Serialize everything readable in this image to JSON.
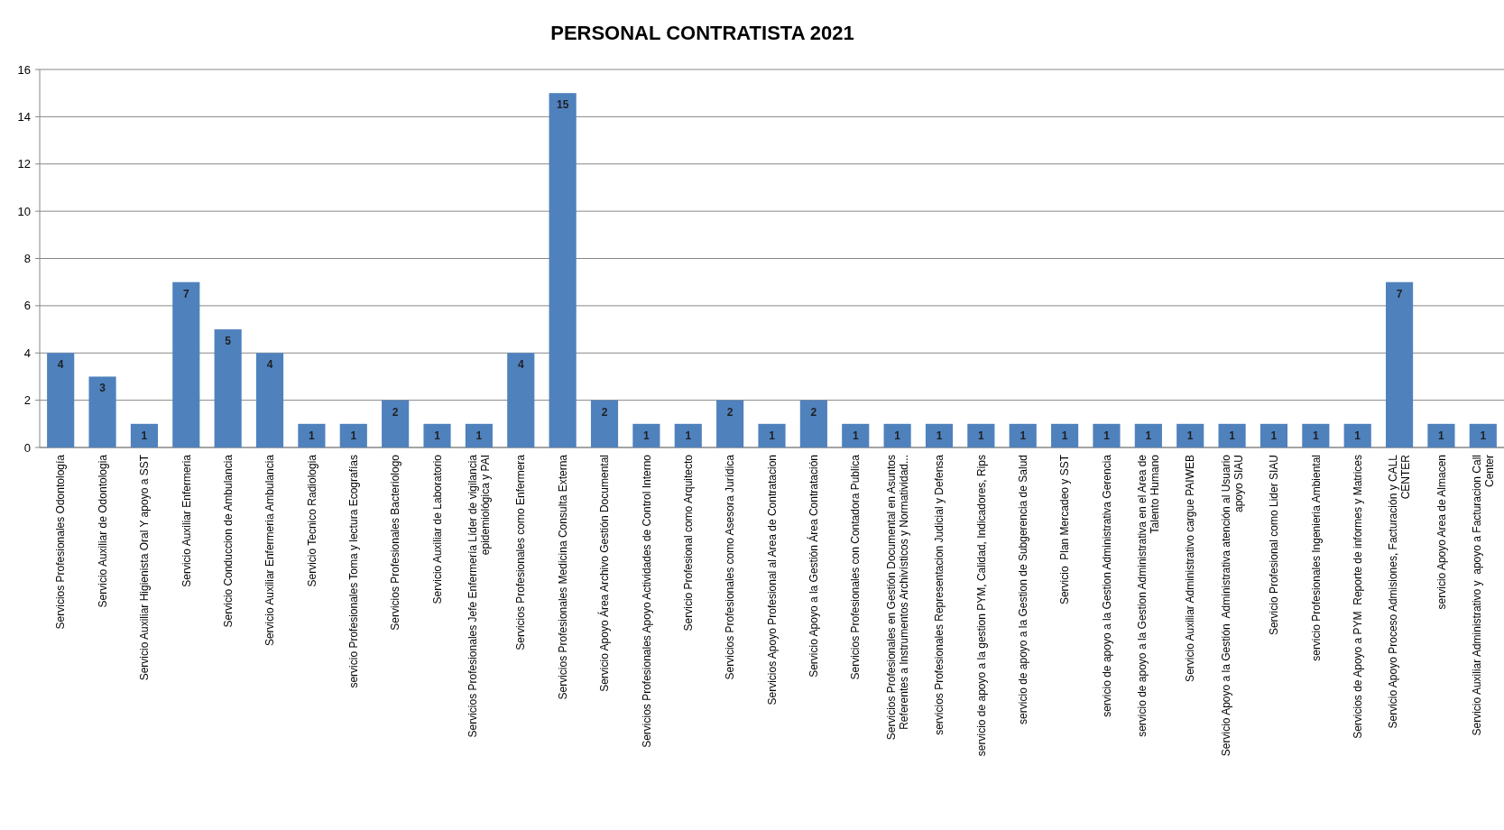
{
  "chart_data": {
    "type": "bar",
    "title": "PERSONAL CONTRATISTA 2021",
    "categories": [
      "Servicios Profesionales Odontología",
      "Servicio Auxiliar de Odontologia",
      "Servicio Auxiliar Higienista Oral Y apoyo a SST",
      "Servicio Auxiliar Enfermeria",
      "Servicio Conduccion de Ambulancia",
      "Servicio Auxiliar Enfermeria Ambulancia",
      "Servicio Tecnico Radiologia",
      "servicio Profesionales Toma y lectura Ecografías",
      "Servicios Profesionales Bacteriologo",
      "Servicio Auxiliar de Laboratorio",
      "Servicios Profesionales Jefe Enfermería Líder de vigilancia epidemiológica y PAI",
      "Servicios Profesionales como Enfermera",
      "Servicios Profesionales Medicina Consulta Externa",
      "Servicio Apoyo Área Archivo Gestión Documental",
      "Servicios Profesionales Apoyo Actividades de Control Interno",
      "Servicio Profesional como Arquitecto",
      "Servicios Profesionales como Asesora Jurídica",
      "Servicios Apoyo Profesional al Area de Contratacion",
      "Servicio Apoyo a la Gestión Área Contratación",
      "Servicios Profesionales con Contadora Publica",
      "Servicios Profesionales en Gestión Documental en Asuntos Referentes a Instrumentos Archivísticos y Normatividad...",
      "servicios Profesionales Representacion Judicial y Defensa",
      "servicio de apoyo a la gestion PYM, Calidad, Indicadores, Rips",
      "servicio de apoyo a la Gestion de Subgerencia de Salud",
      "Servicio  Plan Mercadeo y SST",
      "servicio de apoyo a la Gestion Administrativa Gerencia",
      "servicio de apoyo a la Gestion Administrativa en el Area de Talento Humano",
      "Servicio Auxiliar Administrativo cargue PAIWEB",
      "Servicio Apoyo a la Gestión  Administrativa atención al Usuario apoyo SIAU",
      "Servicio Profesional como Lider SIAU",
      "servicio Profesionales Ingenieria Ambiental",
      "Servicios de Apoyo a PYM  Reporte de informes y Matrices",
      "Servicio Apoyo Proceso Admisiones, Facturación y CALL CENTER",
      "servicio Apoyo Area de Almacen",
      "Servicio Auxiliar Administrativo y  apoyo a Facturacion Call Center"
    ],
    "values": [
      4,
      3,
      1,
      7,
      5,
      4,
      1,
      1,
      2,
      1,
      1,
      4,
      15,
      2,
      1,
      1,
      2,
      1,
      2,
      1,
      1,
      1,
      1,
      1,
      1,
      1,
      1,
      1,
      1,
      1,
      1,
      1,
      7,
      1,
      1
    ],
    "color": "#4f81bd",
    "ylim": [
      0,
      16
    ],
    "yticks": [
      0,
      2,
      4,
      6,
      8,
      10,
      12,
      14,
      16
    ],
    "grid": "y",
    "data_labels": true
  }
}
